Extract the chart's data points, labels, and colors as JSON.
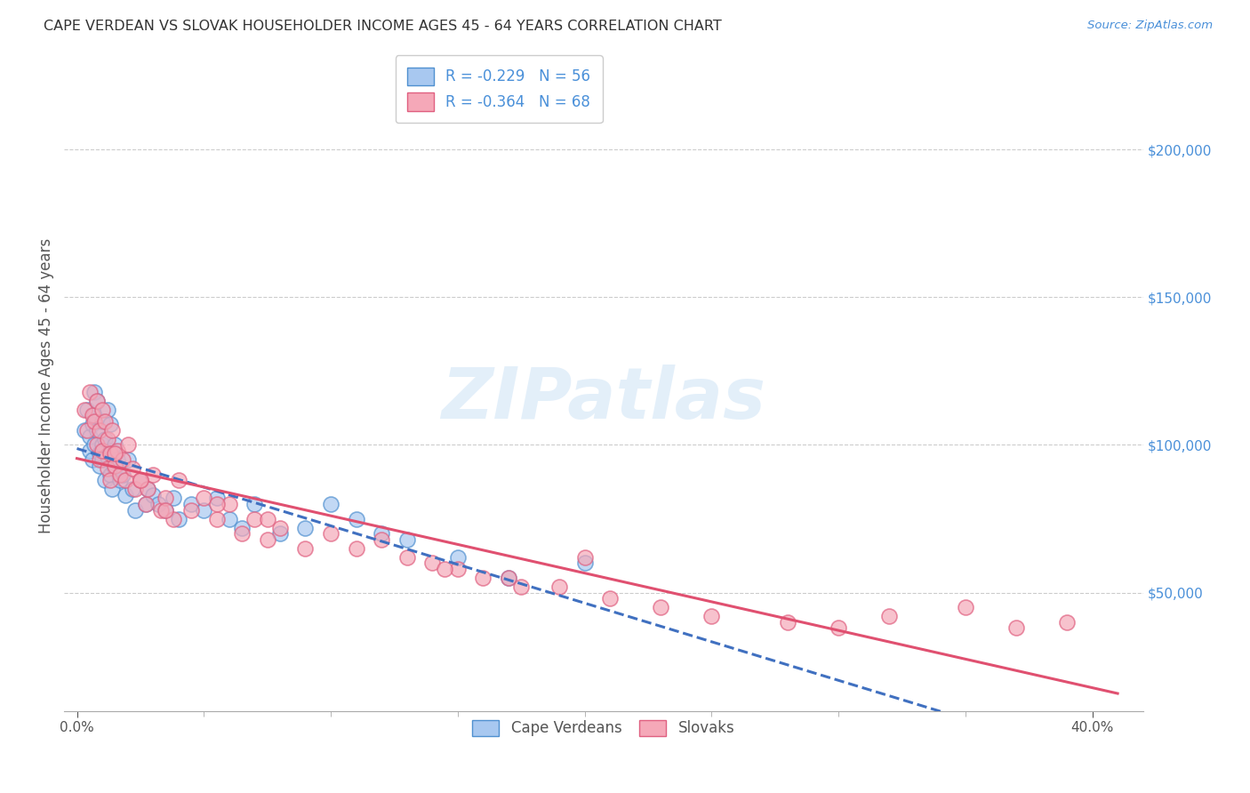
{
  "title": "CAPE VERDEAN VS SLOVAK HOUSEHOLDER INCOME AGES 45 - 64 YEARS CORRELATION CHART",
  "source": "Source: ZipAtlas.com",
  "ylabel": "Householder Income Ages 45 - 64 years",
  "xlim": [
    -0.005,
    0.42
  ],
  "ylim": [
    10000,
    230000
  ],
  "ylabel_ticks": [
    50000,
    100000,
    150000,
    200000
  ],
  "blue_fill": "#a8c8f0",
  "blue_edge": "#5090d0",
  "pink_fill": "#f5a8b8",
  "pink_edge": "#e06080",
  "blue_line_color": "#4070c0",
  "pink_line_color": "#e05070",
  "legend_r1": "R = -0.229   N = 56",
  "legend_r2": "R = -0.364   N = 68",
  "legend_label1": "Cape Verdeans",
  "legend_label2": "Slovaks",
  "watermark": "ZIPatlas",
  "cv_x": [
    0.003,
    0.004,
    0.005,
    0.005,
    0.006,
    0.006,
    0.007,
    0.007,
    0.007,
    0.008,
    0.008,
    0.009,
    0.009,
    0.01,
    0.01,
    0.01,
    0.011,
    0.011,
    0.012,
    0.012,
    0.013,
    0.013,
    0.014,
    0.014,
    0.015,
    0.015,
    0.016,
    0.017,
    0.018,
    0.019,
    0.02,
    0.022,
    0.023,
    0.025,
    0.027,
    0.028,
    0.03,
    0.032,
    0.035,
    0.038,
    0.04,
    0.045,
    0.05,
    0.055,
    0.06,
    0.065,
    0.07,
    0.08,
    0.09,
    0.1,
    0.11,
    0.12,
    0.13,
    0.15,
    0.17,
    0.2
  ],
  "cv_y": [
    105000,
    112000,
    98000,
    103000,
    107000,
    95000,
    110000,
    118000,
    100000,
    105000,
    115000,
    93000,
    97000,
    108000,
    100000,
    95000,
    102000,
    88000,
    112000,
    96000,
    107000,
    90000,
    98000,
    85000,
    100000,
    92000,
    95000,
    88000,
    90000,
    83000,
    95000,
    85000,
    78000,
    88000,
    80000,
    85000,
    83000,
    80000,
    78000,
    82000,
    75000,
    80000,
    78000,
    82000,
    75000,
    72000,
    80000,
    70000,
    72000,
    80000,
    75000,
    70000,
    68000,
    62000,
    55000,
    60000
  ],
  "sk_x": [
    0.003,
    0.004,
    0.005,
    0.006,
    0.007,
    0.008,
    0.008,
    0.009,
    0.009,
    0.01,
    0.01,
    0.011,
    0.012,
    0.012,
    0.013,
    0.013,
    0.014,
    0.015,
    0.016,
    0.017,
    0.018,
    0.019,
    0.02,
    0.022,
    0.023,
    0.025,
    0.027,
    0.028,
    0.03,
    0.033,
    0.035,
    0.038,
    0.04,
    0.045,
    0.05,
    0.055,
    0.06,
    0.065,
    0.07,
    0.075,
    0.08,
    0.09,
    0.1,
    0.11,
    0.12,
    0.13,
    0.14,
    0.15,
    0.17,
    0.19,
    0.21,
    0.23,
    0.25,
    0.28,
    0.3,
    0.32,
    0.35,
    0.37,
    0.39,
    0.2,
    0.16,
    0.175,
    0.145,
    0.075,
    0.055,
    0.035,
    0.025,
    0.015
  ],
  "sk_y": [
    112000,
    105000,
    118000,
    110000,
    108000,
    100000,
    115000,
    95000,
    105000,
    112000,
    98000,
    108000,
    102000,
    92000,
    97000,
    88000,
    105000,
    93000,
    98000,
    90000,
    95000,
    88000,
    100000,
    92000,
    85000,
    88000,
    80000,
    85000,
    90000,
    78000,
    82000,
    75000,
    88000,
    78000,
    82000,
    75000,
    80000,
    70000,
    75000,
    68000,
    72000,
    65000,
    70000,
    65000,
    68000,
    62000,
    60000,
    58000,
    55000,
    52000,
    48000,
    45000,
    42000,
    40000,
    38000,
    42000,
    45000,
    38000,
    40000,
    62000,
    55000,
    52000,
    58000,
    75000,
    80000,
    78000,
    88000,
    97000
  ]
}
